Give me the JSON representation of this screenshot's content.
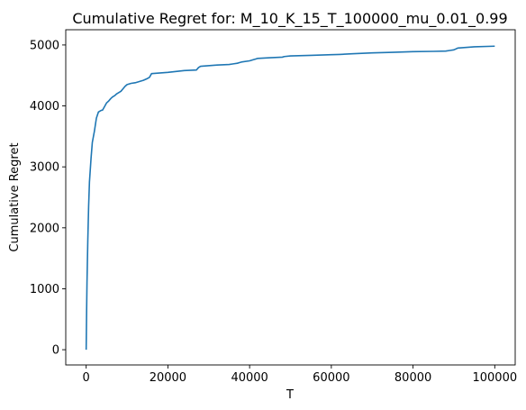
{
  "chart_data": {
    "type": "line",
    "title": "Cumulative Regret for: M_10_K_15_T_100000_mu_0.01_0.99",
    "xlabel": "T",
    "ylabel": "Cumulative Regret",
    "xlim": [
      -5000,
      105000
    ],
    "ylim": [
      -250,
      5250
    ],
    "xticks": [
      0,
      20000,
      40000,
      60000,
      80000,
      100000
    ],
    "yticks": [
      0,
      1000,
      2000,
      3000,
      4000,
      5000
    ],
    "grid": false,
    "line_color": "#1f77b4",
    "series": [
      {
        "x": [
          0,
          100,
          200,
          400,
          600,
          800,
          1000,
          1200,
          1500,
          2000,
          2500,
          3000,
          3500,
          3800,
          4000,
          4500,
          5000,
          5500,
          6000,
          6500,
          7000,
          7500,
          8000,
          8500,
          9000,
          9500,
          10000,
          11000,
          12000,
          13000,
          14000,
          15000,
          15500,
          16000,
          20000,
          24000,
          27000,
          27500,
          28000,
          32000,
          35000,
          36000,
          37000,
          37500,
          38000,
          40000,
          41000,
          41500,
          42000,
          45000,
          48000,
          48500,
          50000,
          55000,
          60000,
          62000,
          65000,
          70000,
          75000,
          80000,
          85000,
          88000,
          89000,
          90000,
          91000,
          95000,
          100000
        ],
        "y": [
          0,
          600,
          1100,
          1800,
          2350,
          2750,
          2950,
          3150,
          3400,
          3580,
          3800,
          3900,
          3920,
          3930,
          3930,
          3990,
          4050,
          4080,
          4120,
          4150,
          4170,
          4200,
          4220,
          4240,
          4280,
          4320,
          4350,
          4370,
          4380,
          4400,
          4420,
          4450,
          4470,
          4530,
          4550,
          4580,
          4590,
          4630,
          4650,
          4670,
          4680,
          4690,
          4700,
          4710,
          4720,
          4740,
          4760,
          4770,
          4780,
          4790,
          4800,
          4810,
          4820,
          4830,
          4840,
          4845,
          4855,
          4870,
          4880,
          4890,
          4895,
          4900,
          4910,
          4920,
          4950,
          4970,
          4980
        ]
      }
    ]
  }
}
